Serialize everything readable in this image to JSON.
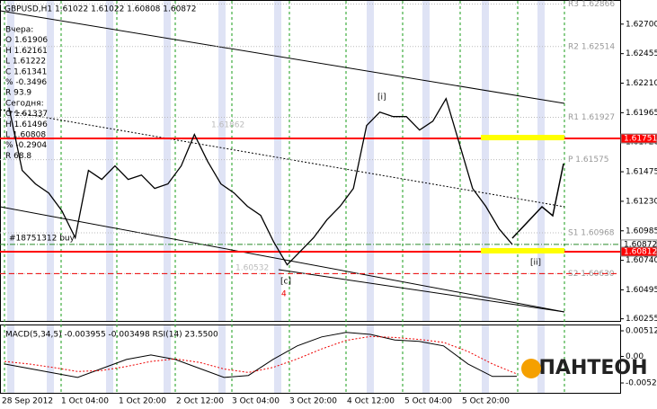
{
  "chart_data": {
    "type": "line",
    "title": "GBPUSD,H1  1.61022 1.61022 1.60808 1.60872",
    "info": [
      "Вчера:",
      "O 1.61906",
      "H 1.62161",
      "L 1.61222",
      "C 1.61341",
      "% -0.3496",
      "R 93.9",
      "Сегодня:",
      "O 1.61337",
      "H 1.61496",
      "L 1.60808",
      "% -0.2904",
      "R 68.8"
    ],
    "ylim": [
      1.6023,
      1.629
    ],
    "yticks": [
      {
        "value": 1.627,
        "label": "1.62700"
      },
      {
        "value": 1.62455,
        "label": "1.62455"
      },
      {
        "value": 1.6221,
        "label": "1.62210"
      },
      {
        "value": 1.61965,
        "label": "1.61965"
      },
      {
        "value": 1.6172,
        "label": "1.61720"
      },
      {
        "value": 1.61475,
        "label": "1.61475"
      },
      {
        "value": 1.6123,
        "label": "1.61230"
      },
      {
        "value": 1.60985,
        "label": "1.60985"
      },
      {
        "value": 1.6074,
        "label": "1.60740"
      },
      {
        "value": 1.60495,
        "label": "1.60495"
      },
      {
        "value": 1.60255,
        "label": "1.60255"
      }
    ],
    "color": "#000000",
    "values": [
      1.62007,
      1.61486,
      1.61374,
      1.61299,
      1.6115,
      1.60927,
      1.61486,
      1.61411,
      1.61523,
      1.61411,
      1.61448,
      1.61337,
      1.61374,
      1.61523,
      1.61784,
      1.6156,
      1.61374,
      1.61299,
      1.61188,
      1.61113,
      1.6089,
      1.60703,
      1.60815,
      1.60927,
      1.61076,
      1.61188,
      1.61337,
      1.61858,
      1.6197,
      1.61933,
      1.61933,
      1.61821,
      1.61895,
      1.62082,
      1.61709,
      1.61337,
      1.61188,
      1.61001,
      1.60872
    ],
    "levels": [
      {
        "label": "1.61751",
        "value": 1.61751,
        "color": "#ff0000"
      },
      {
        "label": "1.60872",
        "value": 1.60872,
        "color": "#ffffff"
      },
      {
        "label": "1.60812",
        "value": 1.60812,
        "color": "#ff0000"
      }
    ],
    "pivots": [
      {
        "label": "R3 1.62866",
        "value": 1.62866
      },
      {
        "label": "R2 1.62514",
        "value": 1.62514
      },
      {
        "label": "R1 1.61927",
        "value": 1.61927
      },
      {
        "label": "P 1.61575",
        "value": 1.61575
      },
      {
        "label": "S1 1.60968",
        "value": 1.60968
      },
      {
        "label": "S2 1.60630",
        "value": 1.6063
      }
    ],
    "order_label": "#18751312 buy",
    "annotations": [
      "[i]",
      "[ii]",
      "[c]",
      "4",
      "1.61862",
      "1.60532"
    ],
    "time_labels": [
      "28 Sep 2012",
      "1 Oct 04:00",
      "1 Oct 20:00",
      "2 Oct 12:00",
      "3 Oct 04:00",
      "3 Oct 20:00",
      "4 Oct 12:00",
      "5 Oct 04:00",
      "5 Oct 20:00"
    ],
    "macd": {
      "title": "MACD(5,34,5) -0.003955 -0.003498 RSI(14) 23.5500",
      "ylim": [
        -0.00744,
        0.0062
      ],
      "yticks": [
        {
          "value": 0.00512,
          "label": "0.00512"
        },
        {
          "value": 0,
          "label": "0.00"
        },
        {
          "value": -0.00529,
          "label": "-0.00529"
        }
      ],
      "values": [
        -0.0015,
        -0.0024,
        -0.0033,
        -0.0042,
        -0.0024,
        -0.0006,
        0.0003,
        -0.0006,
        -0.0024,
        -0.0042,
        -0.0038,
        -0.0006,
        0.0021,
        0.0039,
        0.0048,
        0.0044,
        0.0033,
        0.003,
        0.0021,
        -0.0015,
        -0.004,
        -0.003955
      ],
      "signal": [
        -0.001,
        -0.0015,
        -0.0022,
        -0.003,
        -0.0028,
        -0.002,
        -0.001,
        -0.0005,
        -0.0012,
        -0.0025,
        -0.0032,
        -0.0022,
        -0.0005,
        0.0015,
        0.0032,
        0.004,
        0.0038,
        0.0034,
        0.0028,
        0.001,
        -0.0015,
        -0.003498
      ]
    }
  },
  "logo": "ПАНТЕОН"
}
